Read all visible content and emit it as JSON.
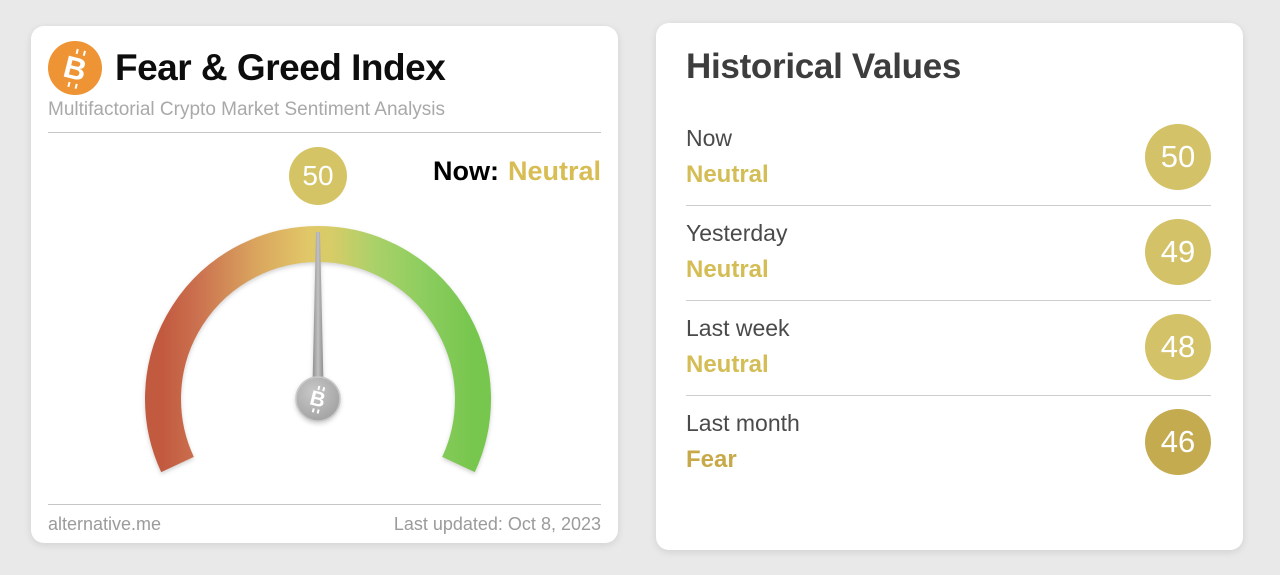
{
  "page_background": "#e9e9e9",
  "gauge_card": {
    "title": "Fear & Greed Index",
    "subtitle": "Multifactorial Crypto Market Sentiment Analysis",
    "now_label": "Now:",
    "now_sentiment": "Neutral",
    "gauge": {
      "type": "gauge",
      "value": 50,
      "min": 0,
      "max": 100,
      "sweep_deg": 230,
      "badge": "50"
    },
    "footer": {
      "source": "alternative.me",
      "last_updated": "Last updated: Oct 8, 2023"
    }
  },
  "historical_card": {
    "title": "Historical Values",
    "rows": [
      {
        "label": "Now",
        "sentiment": "Neutral",
        "value": "50",
        "sentiment_color": "#d4bd55",
        "badge_color": "#d3c267"
      },
      {
        "label": "Yesterday",
        "sentiment": "Neutral",
        "value": "49",
        "sentiment_color": "#d4bd55",
        "badge_color": "#d3c267"
      },
      {
        "label": "Last week",
        "sentiment": "Neutral",
        "value": "48",
        "sentiment_color": "#d4bd55",
        "badge_color": "#d3c267"
      },
      {
        "label": "Last month",
        "sentiment": "Fear",
        "value": "46",
        "sentiment_color": "#c8a94a",
        "badge_color": "#c5ab50"
      }
    ]
  },
  "chart_data": {
    "type": "gauge",
    "title": "Fear & Greed Index",
    "subtitle": "Multifactorial Crypto Market Sentiment Analysis",
    "value": 50,
    "sentiment": "Neutral",
    "range": [
      0,
      100
    ],
    "scale_colors": [
      "#c25a40",
      "#daa55e",
      "#e1c868",
      "#abd169",
      "#77c64e"
    ],
    "needle_position": "center (value 50 of 0-100)",
    "historical": [
      {
        "period": "Now",
        "sentiment": "Neutral",
        "value": 50
      },
      {
        "period": "Yesterday",
        "sentiment": "Neutral",
        "value": 49
      },
      {
        "period": "Last week",
        "sentiment": "Neutral",
        "value": 48
      },
      {
        "period": "Last month",
        "sentiment": "Fear",
        "value": 46
      }
    ],
    "source": "alternative.me",
    "last_updated": "Last updated: Oct 8, 2023"
  },
  "colors": {
    "bitcoin_orange": "#ef9434",
    "gold_neutral": "#d4bd55",
    "gold_fear": "#c8a94a",
    "badge_gold": "#d3c267",
    "badge_gold_dark": "#c5ab50",
    "needle_gray": "#9e9e9e",
    "card_white": "#ffffff"
  }
}
